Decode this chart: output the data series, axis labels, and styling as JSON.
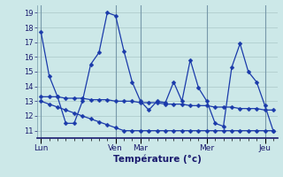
{
  "xlabel": "Température (°c)",
  "background_color": "#cce8e8",
  "grid_color": "#aac8c8",
  "line_color": "#1a3aaa",
  "day_labels": [
    "Lun",
    "Ven",
    "Mar",
    "Mer",
    "Jeu"
  ],
  "day_tick_positions": [
    0,
    9,
    12,
    20,
    27
  ],
  "ylim": [
    10.5,
    19.5
  ],
  "yticks": [
    11,
    12,
    13,
    14,
    15,
    16,
    17,
    18,
    19
  ],
  "n_points": 29,
  "series1": [
    17.7,
    14.7,
    13.3,
    11.5,
    11.5,
    13.0,
    15.5,
    16.3,
    19.0,
    18.8,
    16.4,
    14.3,
    13.0,
    12.4,
    13.0,
    12.9,
    14.3,
    13.0,
    15.8,
    13.9,
    13.0,
    11.5,
    11.3,
    15.3,
    16.9,
    15.0,
    14.3,
    12.7,
    11.0
  ],
  "series2": [
    13.3,
    13.3,
    13.3,
    13.2,
    13.2,
    13.2,
    13.1,
    13.1,
    13.1,
    13.0,
    13.0,
    13.0,
    12.9,
    12.9,
    12.9,
    12.8,
    12.8,
    12.8,
    12.7,
    12.7,
    12.7,
    12.6,
    12.6,
    12.6,
    12.5,
    12.5,
    12.5,
    12.4,
    12.4
  ],
  "series3": [
    13.0,
    12.8,
    12.6,
    12.4,
    12.2,
    12.0,
    11.8,
    11.6,
    11.4,
    11.2,
    11.0,
    11.0,
    11.0,
    11.0,
    11.0,
    11.0,
    11.0,
    11.0,
    11.0,
    11.0,
    11.0,
    11.0,
    11.0,
    11.0,
    11.0,
    11.0,
    11.0,
    11.0,
    11.0
  ]
}
